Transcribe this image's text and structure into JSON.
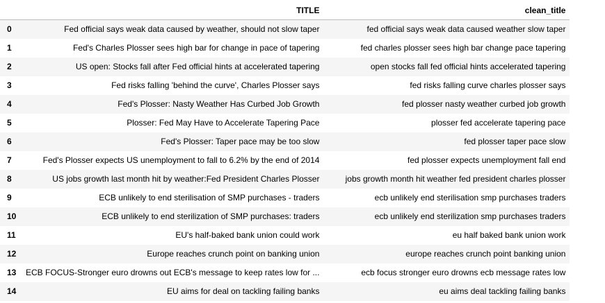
{
  "table": {
    "columns": [
      "",
      "TITLE",
      "clean_title"
    ],
    "rows": [
      {
        "index": "0",
        "title": "Fed official says weak data caused by weather, should not slow taper",
        "clean_title": "fed official says weak data caused weather slow taper"
      },
      {
        "index": "1",
        "title": "Fed's Charles Plosser sees high bar for change in pace of tapering",
        "clean_title": "fed charles plosser sees high bar change pace tapering"
      },
      {
        "index": "2",
        "title": "US open: Stocks fall after Fed official hints at accelerated tapering",
        "clean_title": "open stocks fall fed official hints accelerated tapering"
      },
      {
        "index": "3",
        "title": "Fed risks falling 'behind the curve', Charles Plosser says",
        "clean_title": "fed risks falling curve charles plosser says"
      },
      {
        "index": "4",
        "title": "Fed's Plosser: Nasty Weather Has Curbed Job Growth",
        "clean_title": "fed plosser nasty weather curbed job growth"
      },
      {
        "index": "5",
        "title": "Plosser: Fed May Have to Accelerate Tapering Pace",
        "clean_title": "plosser fed accelerate tapering pace"
      },
      {
        "index": "6",
        "title": "Fed's Plosser: Taper pace may be too slow",
        "clean_title": "fed plosser taper pace slow"
      },
      {
        "index": "7",
        "title": "Fed's Plosser expects US unemployment to fall to 6.2% by the end of 2014",
        "clean_title": "fed plosser expects unemployment fall end"
      },
      {
        "index": "8",
        "title": "US jobs growth last month hit by weather:Fed President Charles Plosser",
        "clean_title": "jobs growth month hit weather fed president charles plosser"
      },
      {
        "index": "9",
        "title": "ECB unlikely to end sterilisation of SMP purchases - traders",
        "clean_title": "ecb unlikely end sterilisation smp purchases traders"
      },
      {
        "index": "10",
        "title": "ECB unlikely to end sterilization of SMP purchases: traders",
        "clean_title": "ecb unlikely end sterilization smp purchases traders"
      },
      {
        "index": "11",
        "title": "EU's half-baked bank union could work",
        "clean_title": "eu half baked bank union work"
      },
      {
        "index": "12",
        "title": "Europe reaches crunch point on banking union",
        "clean_title": "europe reaches crunch point banking union"
      },
      {
        "index": "13",
        "title": "ECB FOCUS-Stronger euro drowns out ECB's message to keep rates low for ...",
        "clean_title": "ecb focus stronger euro drowns ecb message rates low"
      },
      {
        "index": "14",
        "title": "EU aims for deal on tackling failing banks",
        "clean_title": "eu aims deal tackling failing banks"
      }
    ]
  }
}
